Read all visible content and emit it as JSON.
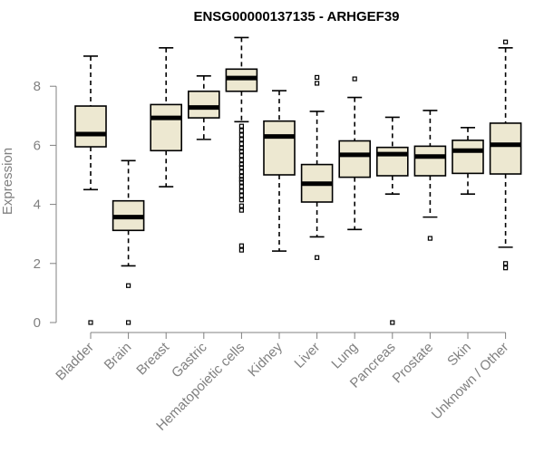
{
  "chart_data": {
    "type": "boxplot",
    "title": "ENSG00000137135 - ARHGEF39",
    "xlabel": "",
    "ylabel": "Expression",
    "ylim": [
      0,
      9.6
    ],
    "yticks": [
      0,
      2,
      4,
      6,
      8
    ],
    "grid": false,
    "legend": "none",
    "box_fill": "#ede8d1",
    "categories": [
      "Bladder",
      "Brain",
      "Breast",
      "Gastric",
      "Hematopoietic cells",
      "Kidney",
      "Liver",
      "Lung",
      "Pancreas",
      "Prostate",
      "Skin",
      "Unknown / Other"
    ],
    "boxes": [
      {
        "whislo": 4.5,
        "q1": 5.95,
        "med": 6.38,
        "q3": 7.33,
        "whishi": 9.02,
        "fliers": [
          0.0
        ]
      },
      {
        "whislo": 1.92,
        "q1": 3.12,
        "med": 3.57,
        "q3": 4.12,
        "whishi": 5.48,
        "fliers": [
          1.25,
          0.0
        ]
      },
      {
        "whislo": 4.6,
        "q1": 5.82,
        "med": 6.93,
        "q3": 7.38,
        "whishi": 9.3,
        "fliers": []
      },
      {
        "whislo": 6.2,
        "q1": 6.93,
        "med": 7.28,
        "q3": 7.83,
        "whishi": 8.35,
        "fliers": []
      },
      {
        "whislo": 6.8,
        "q1": 7.83,
        "med": 8.28,
        "q3": 8.58,
        "whishi": 9.65,
        "fliers": [
          6.65,
          6.5,
          6.35,
          6.2,
          6.05,
          5.9,
          5.8,
          5.65,
          5.5,
          5.35,
          5.25,
          5.1,
          4.95,
          4.85,
          4.75,
          4.6,
          4.45,
          4.3,
          4.15,
          3.95,
          3.8,
          2.6,
          2.45
        ]
      },
      {
        "whislo": 2.42,
        "q1": 5.0,
        "med": 6.3,
        "q3": 6.82,
        "whishi": 7.85,
        "fliers": []
      },
      {
        "whislo": 2.9,
        "q1": 4.08,
        "med": 4.7,
        "q3": 5.35,
        "whishi": 7.15,
        "fliers": [
          8.3,
          8.1,
          2.2
        ]
      },
      {
        "whislo": 3.15,
        "q1": 4.92,
        "med": 5.68,
        "q3": 6.15,
        "whishi": 7.62,
        "fliers": [
          8.25
        ]
      },
      {
        "whislo": 4.35,
        "q1": 4.97,
        "med": 5.7,
        "q3": 5.93,
        "whishi": 6.95,
        "fliers": [
          0.0
        ]
      },
      {
        "whislo": 3.57,
        "q1": 4.97,
        "med": 5.62,
        "q3": 5.97,
        "whishi": 7.18,
        "fliers": [
          2.85
        ]
      },
      {
        "whislo": 4.35,
        "q1": 5.05,
        "med": 5.82,
        "q3": 6.17,
        "whishi": 6.6,
        "fliers": []
      },
      {
        "whislo": 2.55,
        "q1": 5.03,
        "med": 6.02,
        "q3": 6.75,
        "whishi": 9.3,
        "fliers": [
          9.5,
          2.0,
          1.85
        ]
      }
    ]
  }
}
